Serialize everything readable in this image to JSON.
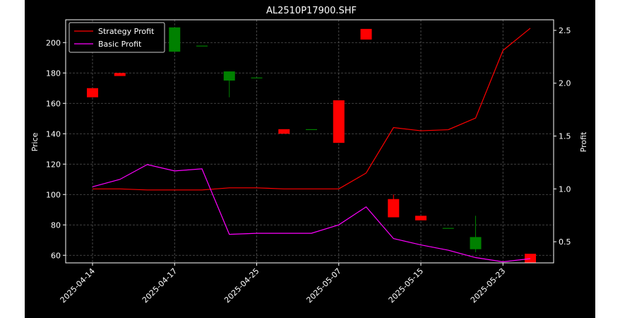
{
  "chart_data": {
    "type": "candlestick+line",
    "title": "AL2510P17900.SHF",
    "xlabel": "",
    "ylabel_left": "Price",
    "ylabel_right": "Profit",
    "ylim_left": [
      55,
      215
    ],
    "ylim_right": [
      0.3,
      2.6
    ],
    "yticks_left": [
      60,
      80,
      100,
      120,
      140,
      160,
      180,
      200
    ],
    "yticks_right": [
      0.5,
      1.0,
      1.5,
      2.0,
      2.5
    ],
    "yticks_right_labels": [
      "0.5",
      "1.0",
      "1.5",
      "2.0",
      "2.5"
    ],
    "xtick_labels": [
      "2025-04-14",
      "2025-04-17",
      "2025-04-25",
      "2025-05-07",
      "2025-05-15",
      "2025-05-23"
    ],
    "xtick_index": [
      0,
      3,
      6,
      9,
      12,
      15
    ],
    "grid": true,
    "legend_placement": "top-left",
    "colors": {
      "background": "#000000",
      "up": "#008000",
      "down": "#ff0000",
      "strategy": "#ff0000",
      "basic": "#ff00ff",
      "grid": "#555555"
    },
    "candles": [
      {
        "open": 170,
        "high": 170,
        "low": 164,
        "close": 164
      },
      {
        "open": 180,
        "high": 180,
        "low": 178,
        "close": 178
      },
      null,
      {
        "open": 194,
        "high": 210,
        "low": 194,
        "close": 210
      },
      {
        "open": 198,
        "high": 198,
        "low": 198,
        "close": 198
      },
      {
        "open": 175,
        "high": 181,
        "low": 164,
        "close": 181
      },
      {
        "open": 177,
        "high": 177,
        "low": 177,
        "close": 177
      },
      {
        "open": 143,
        "high": 143,
        "low": 140,
        "close": 140
      },
      {
        "open": 143,
        "high": 143,
        "low": 143,
        "close": 143
      },
      {
        "open": 162,
        "high": 162,
        "low": 134,
        "close": 134
      },
      {
        "open": 209,
        "high": 209,
        "low": 202,
        "close": 202
      },
      {
        "open": 97,
        "high": 100,
        "low": 85,
        "close": 85
      },
      {
        "open": 86,
        "high": 86,
        "low": 83,
        "close": 83
      },
      {
        "open": 78,
        "high": 78,
        "low": 78,
        "close": 78
      },
      {
        "open": 64,
        "high": 86,
        "low": 62,
        "close": 72
      },
      null,
      {
        "open": 61,
        "high": 61,
        "low": 55,
        "close": 55
      }
    ],
    "series": [
      {
        "name": "Strategy Profit",
        "values": [
          1.0,
          1.0,
          0.99,
          0.99,
          0.99,
          1.01,
          1.01,
          1.0,
          1.0,
          1.0,
          1.15,
          1.58,
          1.55,
          1.56,
          1.67,
          2.31,
          2.52
        ]
      },
      {
        "name": "Basic Profit",
        "values": [
          1.02,
          1.09,
          1.23,
          1.17,
          1.19,
          0.57,
          0.58,
          0.58,
          0.58,
          0.66,
          0.83,
          0.53,
          0.47,
          0.42,
          0.35,
          0.31,
          0.34
        ]
      }
    ]
  }
}
